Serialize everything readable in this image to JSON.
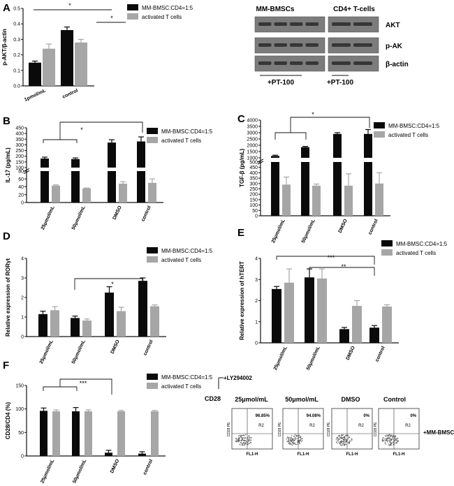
{
  "colors": {
    "series1": "#0a0a0a",
    "series2": "#a6a6a6",
    "axis": "#111111"
  },
  "chart_data": [
    {
      "panel": "A",
      "type": "bar",
      "ylabel": "p-AKT/β-actin",
      "categories": [
        "1pmol/mL",
        "control"
      ],
      "ylim": [
        0,
        0.5
      ],
      "yticks": [
        "0.0",
        "0.1",
        "0.2",
        "0.3",
        "0.4",
        "0.5"
      ],
      "series": [
        {
          "name": "MM-BMSC:CD4=1:5",
          "values": [
            0.15,
            0.36
          ],
          "errors": [
            0.01,
            0.02
          ]
        },
        {
          "name": "activated T cells",
          "values": [
            0.24,
            0.28
          ],
          "errors": [
            0.03,
            0.02
          ]
        }
      ],
      "significance": [
        "*",
        "*"
      ]
    },
    {
      "panel": "B",
      "type": "bar",
      "ylabel": "IL-17 (pg/mL)",
      "categories": [
        "25μmol/mL",
        "50μmol/mL",
        "DMSO",
        "control"
      ],
      "yticks_upper": [
        "100",
        "150",
        "200",
        "250",
        "300",
        "350",
        "400",
        "450"
      ],
      "yticks_lower": [
        "0",
        "20",
        "40",
        "60",
        "80"
      ],
      "series": [
        {
          "name": "MM-BMSC:CD4=1:5",
          "values": [
            180,
            175,
            320,
            330
          ],
          "errors": [
            12,
            10,
            25,
            40
          ]
        },
        {
          "name": "activated T cells",
          "values": [
            43,
            36,
            48,
            50
          ],
          "errors": [
            2,
            1,
            5,
            10
          ]
        }
      ],
      "significance": [
        "*"
      ]
    },
    {
      "panel": "C",
      "type": "bar",
      "ylabel": "TGF-β (pg/mL)",
      "categories": [
        "25μmol/mL",
        "50μmol/mL",
        "DMSO",
        "control"
      ],
      "yticks_upper": [
        "1000",
        "1500",
        "2000",
        "2500",
        "3000",
        "3500",
        "4000"
      ],
      "yticks_lower": [
        "0",
        "50",
        "100",
        "150",
        "200",
        "250",
        "300",
        "350",
        "400",
        "450",
        "500"
      ],
      "series": [
        {
          "name": "MM-BMSC:CD4=1:5",
          "values": [
            1150,
            1850,
            2900,
            2900
          ],
          "errors": [
            60,
            60,
            100,
            350
          ]
        },
        {
          "name": "activated T cells",
          "values": [
            290,
            280,
            280,
            300
          ],
          "errors": [
            70,
            15,
            110,
            100
          ]
        }
      ],
      "significance": [
        "*"
      ]
    },
    {
      "panel": "D",
      "type": "bar",
      "ylabel": "Relative expression of RORγt",
      "categories": [
        "25μmol/mL",
        "50μmol/mL",
        "DMSO",
        "control"
      ],
      "ylim": [
        0,
        4
      ],
      "yticks": [
        "0",
        "1",
        "2",
        "3",
        "4"
      ],
      "series": [
        {
          "name": "MM-BMSC:CD4=1:5",
          "values": [
            1.15,
            0.95,
            2.25,
            2.85
          ],
          "errors": [
            0.15,
            0.1,
            0.3,
            0.15
          ]
        },
        {
          "name": "activated T cells",
          "values": [
            1.35,
            0.82,
            1.3,
            1.55
          ],
          "errors": [
            0.18,
            0.08,
            0.2,
            0.07
          ]
        }
      ],
      "significance": [
        "*"
      ]
    },
    {
      "panel": "E",
      "type": "bar",
      "ylabel": "Relative expression of hTERT",
      "categories": [
        "25μmol/mL",
        "50μmol/mL",
        "DMSO",
        "control"
      ],
      "ylim": [
        0,
        4
      ],
      "yticks": [
        "0",
        "1",
        "2",
        "3",
        "4"
      ],
      "series": [
        {
          "name": "MM-BMSC:CD4=1:5",
          "values": [
            2.55,
            3.1,
            0.65,
            0.72
          ],
          "errors": [
            0.12,
            0.4,
            0.08,
            0.1
          ]
        },
        {
          "name": "activated T cells",
          "values": [
            2.85,
            3.05,
            1.75,
            1.72
          ],
          "errors": [
            0.65,
            0.45,
            0.25,
            0.08
          ]
        }
      ],
      "significance": [
        "***",
        "**"
      ]
    },
    {
      "panel": "F",
      "type": "bar",
      "ylabel": "CD28/CD4 (%)",
      "categories": [
        "25μmol/mL",
        "50μmol/mL",
        "DMSO",
        "control"
      ],
      "ylim": [
        0,
        150
      ],
      "yticks": [
        "0",
        "50",
        "100",
        "150"
      ],
      "series": [
        {
          "name": "MM-BMSC:CD4=1:5",
          "values": [
            96,
            95,
            7,
            5
          ],
          "errors": [
            6,
            8,
            5,
            4
          ]
        },
        {
          "name": "activated T cells",
          "values": [
            95,
            95,
            95,
            95
          ],
          "errors": [
            3,
            3,
            2,
            2
          ]
        }
      ],
      "significance": [
        "***"
      ]
    }
  ],
  "panel_letters": [
    "A",
    "B",
    "C",
    "D",
    "E",
    "F"
  ],
  "western": {
    "col_headers": [
      "MM-BMSCs",
      "CD4+ T-cells"
    ],
    "row_labels": [
      "AKT",
      "p-AK",
      "β-actin"
    ],
    "treatment_labels": [
      "+PT-100",
      "+PT-100"
    ]
  },
  "flow": {
    "treatment": "+LY294002",
    "axis_label": "CD28",
    "side_label": "+MM-BMSCs",
    "y_axis": "CD28 PE",
    "x_axis": "FL1-H",
    "gate": "R2",
    "plots": [
      {
        "title": "25μmol/mL",
        "percent": "96.85%"
      },
      {
        "title": "50μmol/mL",
        "percent": "94.08%"
      },
      {
        "title": "DMSO",
        "percent": "0%"
      },
      {
        "title": "Control",
        "percent": "0%"
      }
    ]
  }
}
